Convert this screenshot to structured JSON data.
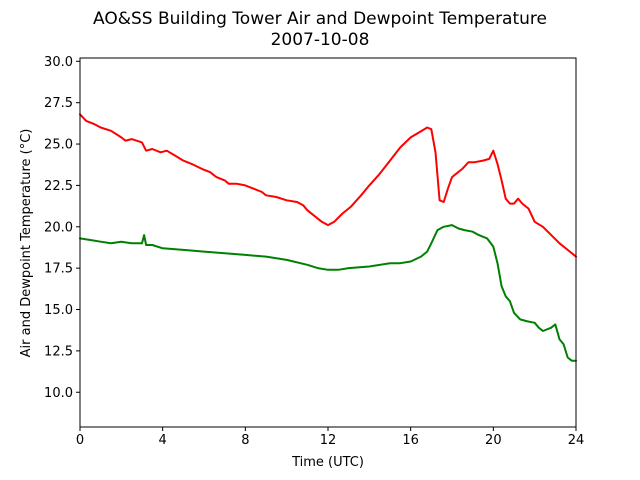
{
  "chart_data": {
    "type": "line",
    "title": "AO&SS Building Tower Air and Dewpoint Temperature",
    "subtitle": "2007-10-08",
    "xlabel": "Time (UTC)",
    "ylabel": "Air and Dewpoint Temperature (°C)",
    "xlim": [
      0,
      24
    ],
    "ylim": [
      7.9,
      30.2
    ],
    "xticks": [
      0,
      4,
      8,
      12,
      16,
      20,
      24
    ],
    "xtick_labels": [
      "0",
      "4",
      "8",
      "12",
      "16",
      "20",
      "24"
    ],
    "yticks": [
      10.0,
      12.5,
      15.0,
      17.5,
      20.0,
      22.5,
      25.0,
      27.5,
      30.0
    ],
    "ytick_labels": [
      "10.0",
      "12.5",
      "15.0",
      "17.5",
      "20.0",
      "22.5",
      "25.0",
      "27.5",
      "30.0"
    ],
    "grid": false,
    "series": [
      {
        "color": "#ff0000",
        "x": [
          0,
          0.3,
          0.7,
          1.0,
          1.5,
          2.0,
          2.2,
          2.5,
          3.0,
          3.2,
          3.5,
          3.9,
          4.2,
          4.6,
          5.0,
          5.4,
          5.9,
          6.3,
          6.6,
          7.0,
          7.2,
          7.6,
          8.0,
          8.4,
          8.8,
          9.0,
          9.5,
          10.0,
          10.5,
          10.8,
          11.0,
          11.3,
          11.7,
          12.0,
          12.3,
          12.7,
          13.1,
          13.6,
          14.0,
          14.5,
          15.0,
          15.5,
          16.0,
          16.4,
          16.8,
          17.0,
          17.2,
          17.4,
          17.6,
          17.8,
          18.0,
          18.2,
          18.5,
          18.8,
          19.1,
          19.5,
          19.8,
          20.0,
          20.2,
          20.4,
          20.6,
          20.8,
          21.0,
          21.2,
          21.4,
          21.7,
          22.0,
          22.4,
          22.8,
          23.2,
          23.6,
          24.0
        ],
        "y": [
          26.8,
          26.4,
          26.2,
          26.0,
          25.8,
          25.4,
          25.2,
          25.3,
          25.1,
          24.6,
          24.7,
          24.5,
          24.6,
          24.3,
          24.0,
          23.8,
          23.5,
          23.3,
          23.0,
          22.8,
          22.6,
          22.6,
          22.5,
          22.3,
          22.1,
          21.9,
          21.8,
          21.6,
          21.5,
          21.3,
          21.0,
          20.7,
          20.3,
          20.1,
          20.3,
          20.8,
          21.2,
          21.9,
          22.5,
          23.2,
          24.0,
          24.8,
          25.4,
          25.7,
          26.0,
          25.9,
          24.5,
          21.6,
          21.5,
          22.3,
          23.0,
          23.2,
          23.5,
          23.9,
          23.9,
          24.0,
          24.1,
          24.6,
          23.8,
          22.8,
          21.7,
          21.4,
          21.4,
          21.7,
          21.4,
          21.1,
          20.3,
          20.0,
          19.5,
          19.0,
          18.6,
          18.2
        ]
      },
      {
        "color": "#008000",
        "x": [
          0,
          0.5,
          1.0,
          1.5,
          2.0,
          2.5,
          3.0,
          3.1,
          3.2,
          3.5,
          4.0,
          5.0,
          6.0,
          7.0,
          8.0,
          9.0,
          10.0,
          11.0,
          11.5,
          12.0,
          12.5,
          13.0,
          14.0,
          15.0,
          15.5,
          16.0,
          16.5,
          16.8,
          17.0,
          17.3,
          17.6,
          18.0,
          18.3,
          18.6,
          19.0,
          19.3,
          19.7,
          20.0,
          20.2,
          20.4,
          20.6,
          20.8,
          21.0,
          21.3,
          21.6,
          22.0,
          22.2,
          22.4,
          22.8,
          23.0,
          23.2,
          23.4,
          23.6,
          23.8,
          24.0
        ],
        "y": [
          19.3,
          19.2,
          19.1,
          19.0,
          19.1,
          19.0,
          19.0,
          19.5,
          18.9,
          18.9,
          18.7,
          18.6,
          18.5,
          18.4,
          18.3,
          18.2,
          18.0,
          17.7,
          17.5,
          17.4,
          17.4,
          17.5,
          17.6,
          17.8,
          17.8,
          17.9,
          18.2,
          18.5,
          19.0,
          19.8,
          20.0,
          20.1,
          19.9,
          19.8,
          19.7,
          19.5,
          19.3,
          18.8,
          17.8,
          16.4,
          15.8,
          15.5,
          14.8,
          14.4,
          14.3,
          14.2,
          13.9,
          13.7,
          13.9,
          14.1,
          13.2,
          12.9,
          12.1,
          11.9,
          11.9
        ]
      }
    ]
  }
}
